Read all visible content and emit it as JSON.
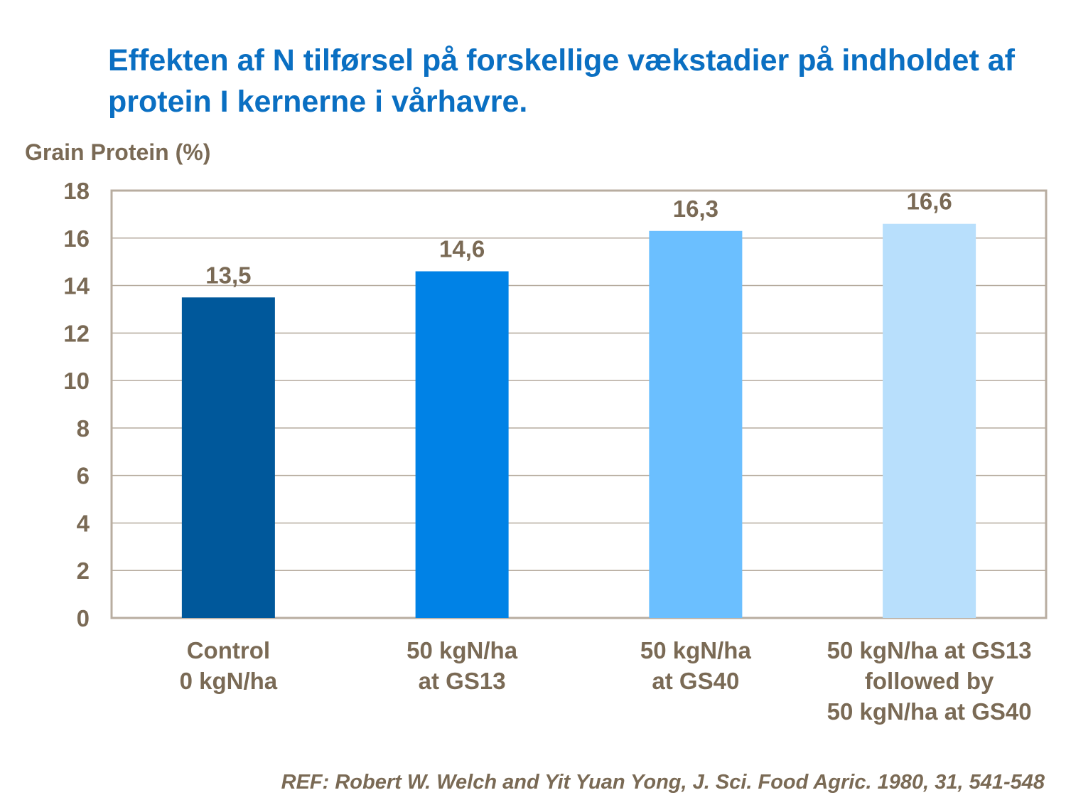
{
  "chart_data": {
    "type": "bar",
    "title": "Effekten af N tilførsel på forskellige vækstadier på indholdet af protein I kernerne i vårhavre.",
    "ylabel": "Grain Protein (%)",
    "xlabel": "",
    "ylim": [
      0,
      18
    ],
    "yticks": [
      0,
      2,
      4,
      6,
      8,
      10,
      12,
      14,
      16,
      18
    ],
    "grid": true,
    "categories": [
      [
        "Control",
        "0 kgN/ha"
      ],
      [
        "50 kgN/ha",
        "at GS13"
      ],
      [
        "50 kgN/ha",
        "at GS40"
      ],
      [
        "50 kgN/ha at GS13",
        "followed by",
        "50 kgN/ha at GS40"
      ]
    ],
    "values": [
      13.5,
      14.6,
      16.3,
      16.6
    ],
    "data_labels": [
      "13,5",
      "14,6",
      "16,3",
      "16,6"
    ],
    "bar_colors": [
      "#00589b",
      "#0082e6",
      "#6bbfff",
      "#b8dffc"
    ]
  },
  "reference": "REF: Robert W. Welch and Yit Yuan Yong, J. Sci. Food Agric. 1980, 31, 541-548",
  "colors": {
    "title": "#0a6fc2",
    "text": "#7a6a55",
    "grid": "#b5aa9d",
    "frame": "#b8ada0"
  }
}
